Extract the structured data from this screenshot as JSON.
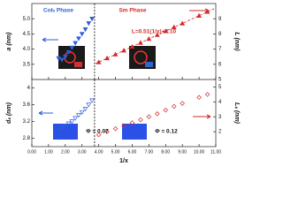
{
  "chart_data": [
    {
      "type": "scatter",
      "ylabel": "a (nm)",
      "y2label": "L (nm)",
      "annotations": [
        "Colₕ Phase",
        "Sm Phase",
        "L=0.51(1/x)+4.10"
      ],
      "xlim": [
        0,
        11
      ],
      "ylim": [
        3.0,
        5.5
      ],
      "yticks": [
        {
          "value": 3.5,
          "label": "3.5"
        },
        {
          "value": 4,
          "label": "4.0"
        },
        {
          "value": 4.5,
          "label": "4.5"
        },
        {
          "value": 5,
          "label": "5.0"
        }
      ],
      "y2lim": [
        5,
        10
      ],
      "y2ticks": [
        5,
        6,
        7,
        8,
        9
      ],
      "divider_x": 3.75,
      "series": [
        {
          "color": "#2f5fd8",
          "marker": "triangle-down",
          "filled": true,
          "x": [
            1.6,
            1.8,
            2.0,
            2.2,
            2.4,
            2.6,
            2.8,
            3.0,
            3.2,
            3.4,
            3.6
          ],
          "values": [
            3.7,
            3.65,
            3.75,
            3.9,
            4.05,
            4.2,
            4.35,
            4.5,
            4.65,
            4.85,
            5.0
          ]
        },
        {
          "color": "#d42a2a",
          "marker": "triangle-up",
          "filled": true,
          "axis": "y2",
          "x": [
            4.0,
            4.5,
            5.0,
            5.5,
            6.0,
            6.5,
            7.0,
            7.5,
            8.0,
            8.5,
            9.0,
            10.0,
            10.5
          ],
          "values": [
            6.14,
            6.4,
            6.65,
            6.91,
            7.16,
            7.42,
            7.67,
            7.93,
            8.18,
            8.44,
            8.69,
            9.2,
            9.46
          ]
        },
        {
          "color": "#d42a2a",
          "marker": "dashed-line",
          "axis": "y2",
          "x": [
            3.8,
            11.0
          ],
          "values": [
            6.04,
            9.71
          ]
        }
      ]
    },
    {
      "type": "scatter",
      "ylabel": "dₛ (nm)",
      "y2label": "Lₛ (nm)",
      "xlabel": "1/x",
      "annotations": [
        "Φ = 0.07",
        "Φ = 0.12"
      ],
      "xlim": [
        0,
        11
      ],
      "xticks": [
        {
          "value": 0,
          "label": "0.00"
        },
        {
          "value": 1,
          "label": "1.00"
        },
        {
          "value": 2,
          "label": "2.00"
        },
        {
          "value": 3,
          "label": "3.00"
        },
        {
          "value": 4,
          "label": "4.00"
        },
        {
          "value": 5,
          "label": "5.00"
        },
        {
          "value": 6,
          "label": "6.00"
        },
        {
          "value": 7,
          "label": "7.00"
        },
        {
          "value": 8,
          "label": "8.00"
        },
        {
          "value": 9,
          "label": "9.00"
        },
        {
          "value": 10,
          "label": "10.00"
        },
        {
          "value": 11,
          "label": "11.00"
        }
      ],
      "ylim": [
        2.6,
        4.2
      ],
      "yticks": [
        2.8,
        3.2,
        3.6,
        4
      ],
      "y2lim": [
        1,
        5.5
      ],
      "y2ticks": [
        2,
        3,
        4,
        5
      ],
      "divider_x": 3.75,
      "series": [
        {
          "color": "#2f5fd8",
          "marker": "triangle-down",
          "filled": false,
          "x": [
            1.6,
            1.8,
            2.0,
            2.2,
            2.4,
            2.6,
            2.8,
            3.0,
            3.2,
            3.4,
            3.6
          ],
          "values": [
            3.0,
            3.05,
            3.1,
            3.15,
            3.2,
            3.28,
            3.35,
            3.42,
            3.5,
            3.6,
            3.7
          ]
        },
        {
          "color": "#d42a2a",
          "marker": "diamond",
          "filled": false,
          "axis": "y2",
          "x": [
            4.0,
            4.5,
            5.0,
            5.5,
            6.0,
            6.5,
            7.0,
            7.5,
            8.0,
            8.5,
            9.0,
            10.0,
            10.5
          ],
          "values": [
            1.8,
            2.0,
            2.2,
            2.4,
            2.6,
            2.8,
            3.0,
            3.2,
            3.45,
            3.7,
            3.9,
            4.3,
            4.5
          ]
        }
      ]
    }
  ]
}
